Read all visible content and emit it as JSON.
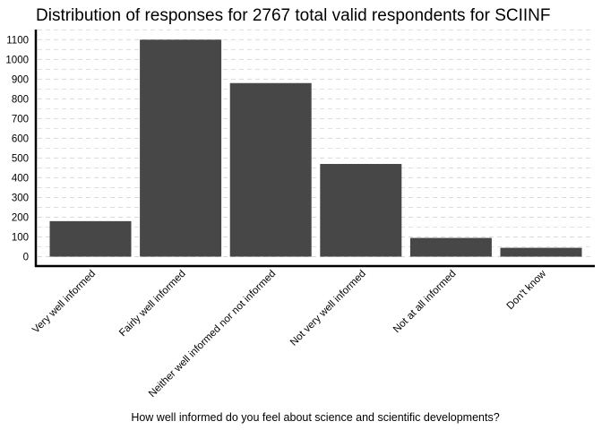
{
  "chart_data": {
    "type": "bar",
    "title": "Distribution of responses for 2767 total valid respondents for SCIINF",
    "xlabel": "How well informed do you feel about science and scientific developments?",
    "ylabel": "",
    "categories": [
      "Very well informed",
      "Fairly well informed",
      "Neither well informed nor not informed",
      "Not very well informed",
      "Not at all informed",
      "Don't know"
    ],
    "values": [
      180,
      1100,
      880,
      470,
      95,
      45
    ],
    "ylim": [
      0,
      1150
    ],
    "yticks": [
      0,
      100,
      200,
      300,
      400,
      500,
      600,
      700,
      800,
      900,
      1000,
      1100
    ],
    "grid": true,
    "bar_color": "#474747",
    "grid_color": "#d9d9d9"
  }
}
